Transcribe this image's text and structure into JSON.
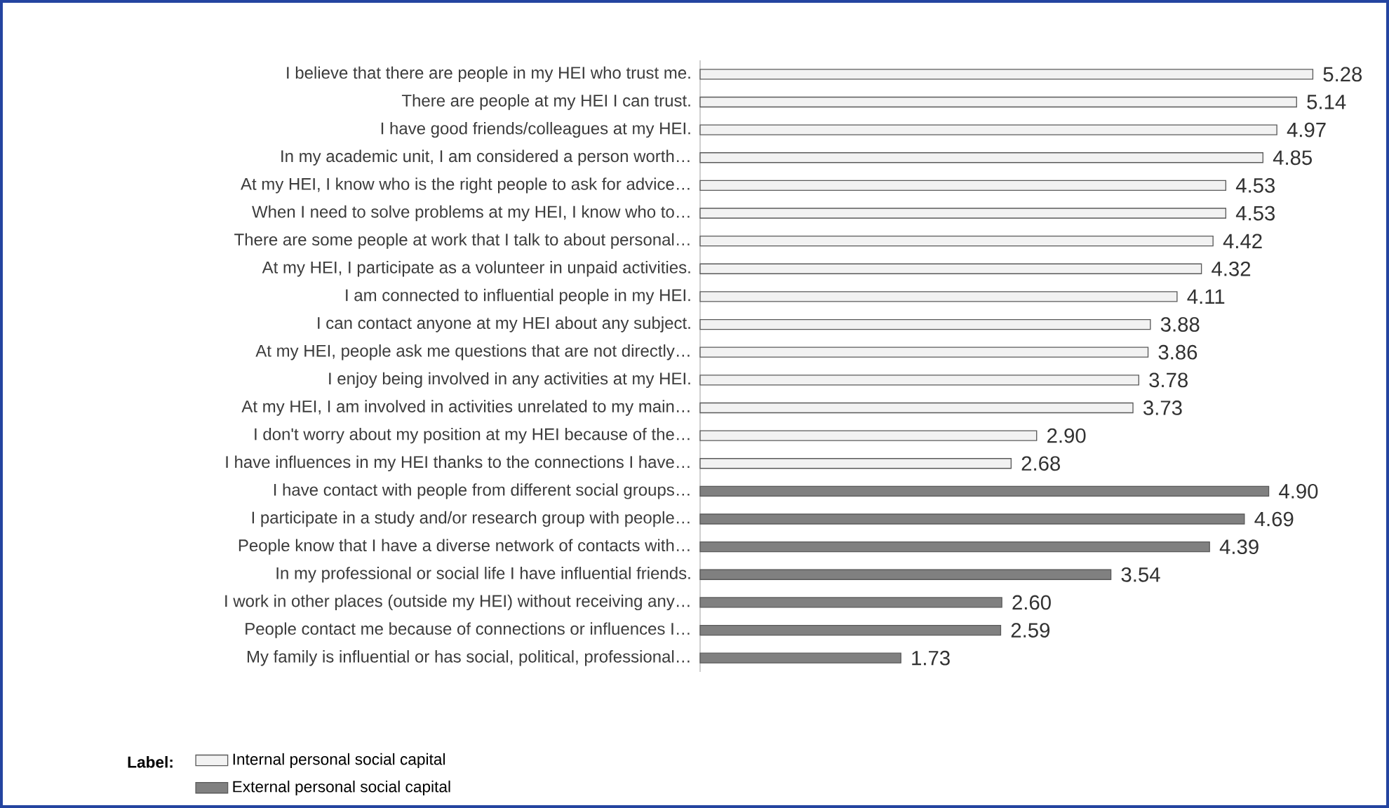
{
  "chart_data": {
    "type": "bar",
    "orientation": "horizontal",
    "categories": [
      "I believe that there are people in my HEI who trust me.",
      "There are people at my HEI I can trust.",
      "I have good friends/colleagues at my HEI.",
      "In my academic unit, I am considered a person worth…",
      "At my HEI, I know who is the right people to ask for advice…",
      "When I need to solve problems at my HEI, I know who to…",
      "There are some people at work that I talk to about personal…",
      "At my HEI, I participate as a volunteer in unpaid activities.",
      "I am connected to influential people in my HEI.",
      "I can contact anyone at my HEI about any subject.",
      "At my HEI, people ask me questions that are not directly…",
      "I enjoy being involved in any activities at my HEI.",
      "At my HEI, I am involved in activities unrelated to my main…",
      "I don't worry about my position at my HEI because of the…",
      "I have influences in my HEI thanks to the connections I have…",
      "I have contact with people from different social groups…",
      "I participate in a study and/or research group with people…",
      "People know that I have a diverse network of contacts with…",
      "In my professional or social life I have influential friends.",
      "I work in other places (outside my HEI) without receiving any…",
      "People contact me because of connections or influences I…",
      "My family is influential or has social, political, professional…"
    ],
    "series": [
      {
        "name": "Internal personal social capital",
        "color": "#f2f2f2",
        "values": [
          5.28,
          5.14,
          4.97,
          4.85,
          4.53,
          4.53,
          4.42,
          4.32,
          4.11,
          3.88,
          3.86,
          3.78,
          3.73,
          2.9,
          2.68,
          null,
          null,
          null,
          null,
          null,
          null,
          null
        ],
        "value_labels": [
          "5.28",
          "5.14",
          "4.97",
          "4.85",
          "4.53",
          "4.53",
          "4.42",
          "4.32",
          "4.11",
          "3.88",
          "3.86",
          "3.78",
          "3.73",
          "2.90",
          "2.68",
          null,
          null,
          null,
          null,
          null,
          null,
          null
        ]
      },
      {
        "name": "External personal social capital",
        "color": "#808080",
        "values": [
          null,
          null,
          null,
          null,
          null,
          null,
          null,
          null,
          null,
          null,
          null,
          null,
          null,
          null,
          null,
          4.9,
          4.69,
          4.39,
          3.54,
          2.6,
          2.59,
          1.73
        ],
        "value_labels": [
          null,
          null,
          null,
          null,
          null,
          null,
          null,
          null,
          null,
          null,
          null,
          null,
          null,
          null,
          null,
          "4.90",
          "4.69",
          "4.39",
          "3.54",
          "2.60",
          "2.59",
          "1.73"
        ]
      }
    ],
    "xlim": [
      0,
      5.9
    ],
    "tick_labels": "y",
    "legend": "bottom left",
    "legend_title": "Label:"
  }
}
